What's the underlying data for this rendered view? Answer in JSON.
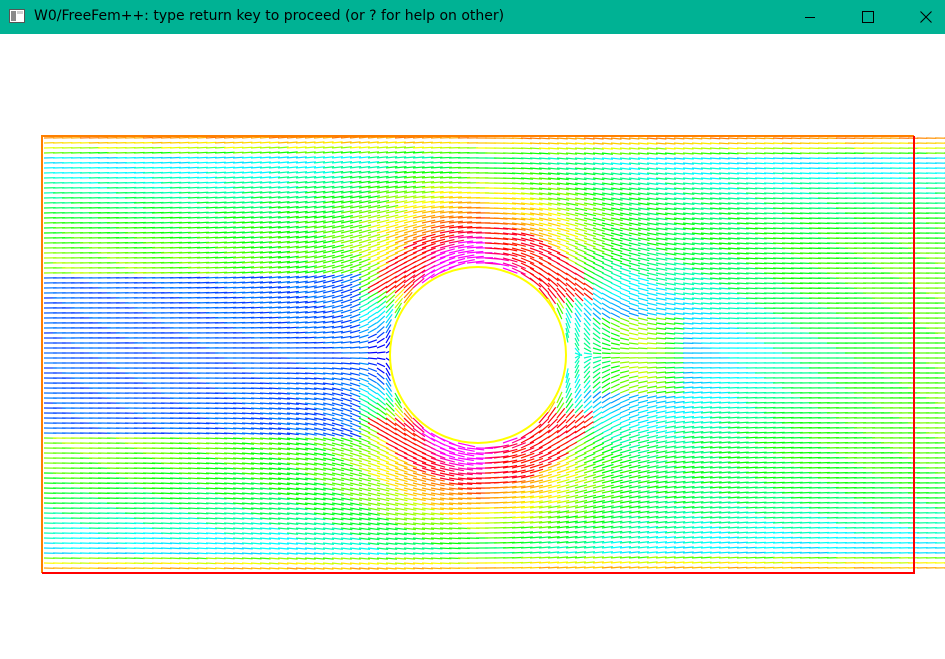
{
  "window": {
    "title": "W0/FreeFem++: type return key to proceed (or ? for help on other)",
    "titlebar_color": "#00b294",
    "icons": {
      "app": "freefem-app-icon",
      "minimize": "minimize-icon",
      "maximize": "maximize-icon",
      "close": "close-icon"
    }
  },
  "plot": {
    "kind": "velocity-vector-field",
    "obstacle": "cylinder",
    "colormap": [
      "#0000ff",
      "#00a0ff",
      "#00ffff",
      "#00ff00",
      "#ffff00",
      "#ff8000",
      "#ff0000",
      "#ff00ff"
    ],
    "border_colors": {
      "top_left": "#ff8000",
      "bottom_right": "#ff0000",
      "cylinder": "#ffff00"
    }
  }
}
